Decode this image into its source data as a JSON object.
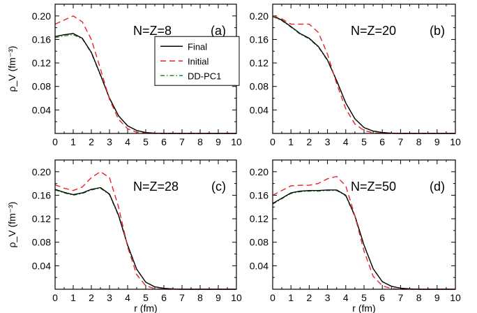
{
  "chart_data": [
    {
      "type": "line",
      "nucleus_label": "N=Z=8",
      "panel_label": "(a)",
      "xlabel": "",
      "ylabel": "ρ_V (fm⁻³)",
      "xlim": [
        0,
        10
      ],
      "ylim": [
        0,
        0.22
      ],
      "x_ticks": [
        "0",
        "1",
        "2",
        "3",
        "4",
        "5",
        "6",
        "7",
        "8",
        "9",
        "10"
      ],
      "y_ticks": [
        "0.04",
        "0.08",
        "0.12",
        "0.16",
        "0.20"
      ],
      "legend": {
        "placement": "right-center"
      },
      "series": [
        {
          "name": "Initial",
          "color": "#e8212a",
          "dash": "dashed",
          "x": [
            0,
            0.5,
            1,
            1.5,
            2,
            2.5,
            3,
            3.5,
            4,
            4.5,
            5,
            5.5,
            6,
            7,
            8,
            9,
            10
          ],
          "y": [
            0.186,
            0.193,
            0.2,
            0.19,
            0.16,
            0.11,
            0.058,
            0.024,
            0.008,
            0.002,
            0.0005,
            0,
            0,
            0,
            0,
            0,
            0
          ]
        },
        {
          "name": "Final",
          "color": "#000000",
          "dash": "solid",
          "x": [
            0,
            0.5,
            1,
            1.5,
            2,
            2.5,
            3,
            3.5,
            4,
            4.5,
            5,
            5.5,
            6,
            7,
            8,
            9,
            10
          ],
          "y": [
            0.165,
            0.168,
            0.17,
            0.162,
            0.138,
            0.1,
            0.06,
            0.03,
            0.013,
            0.005,
            0.0015,
            0.0004,
            0,
            0,
            0,
            0,
            0
          ]
        },
        {
          "name": "DD-PC1",
          "color": "#2a8c2a",
          "dash": "dashdot",
          "x": [
            0,
            0.5,
            1,
            1.5,
            2,
            2.5,
            3,
            3.5,
            4,
            4.5,
            5,
            5.5,
            6,
            7,
            8,
            9,
            10
          ],
          "y": [
            0.163,
            0.166,
            0.168,
            0.161,
            0.137,
            0.099,
            0.06,
            0.03,
            0.013,
            0.005,
            0.0015,
            0.0004,
            0,
            0,
            0,
            0,
            0
          ]
        }
      ]
    },
    {
      "type": "line",
      "nucleus_label": "N=Z=20",
      "panel_label": "(b)",
      "xlabel": "",
      "ylabel": "",
      "xlim": [
        0,
        10
      ],
      "ylim": [
        0,
        0.22
      ],
      "x_ticks": [
        "0",
        "1",
        "2",
        "3",
        "4",
        "5",
        "6",
        "7",
        "8",
        "9",
        "10"
      ],
      "y_ticks": [
        "0.04",
        "0.08",
        "0.12",
        "0.16",
        "0.20"
      ],
      "series": [
        {
          "name": "Initial",
          "color": "#e8212a",
          "dash": "dashed",
          "x": [
            0,
            0.5,
            1,
            1.5,
            2,
            2.5,
            3,
            3.5,
            4,
            4.5,
            5,
            5.5,
            6,
            7,
            8,
            9,
            10
          ],
          "y": [
            0.2,
            0.195,
            0.186,
            0.186,
            0.186,
            0.172,
            0.135,
            0.085,
            0.042,
            0.016,
            0.005,
            0.001,
            0,
            0,
            0,
            0,
            0
          ]
        },
        {
          "name": "Final",
          "color": "#000000",
          "dash": "solid",
          "x": [
            0,
            0.5,
            1,
            1.5,
            2,
            2.5,
            3,
            3.5,
            4,
            4.5,
            5,
            5.5,
            6,
            6.5,
            7,
            8,
            9,
            10
          ],
          "y": [
            0.2,
            0.193,
            0.182,
            0.17,
            0.162,
            0.148,
            0.125,
            0.09,
            0.052,
            0.025,
            0.01,
            0.004,
            0.0015,
            0.0005,
            0,
            0,
            0,
            0
          ]
        },
        {
          "name": "DD-PC1",
          "color": "#2a8c2a",
          "dash": "dashdot",
          "x": [
            0,
            0.5,
            1,
            1.5,
            2,
            2.5,
            3,
            3.5,
            4,
            4.5,
            5,
            5.5,
            6,
            6.5,
            7,
            8,
            9,
            10
          ],
          "y": [
            0.199,
            0.192,
            0.181,
            0.169,
            0.161,
            0.147,
            0.124,
            0.09,
            0.052,
            0.025,
            0.01,
            0.004,
            0.0015,
            0.0005,
            0,
            0,
            0,
            0
          ]
        }
      ]
    },
    {
      "type": "line",
      "nucleus_label": "N=Z=28",
      "panel_label": "(c)",
      "xlabel": "r (fm)",
      "ylabel": "ρ_V (fm⁻³)",
      "xlim": [
        0,
        10
      ],
      "ylim": [
        0,
        0.22
      ],
      "x_ticks": [
        "0",
        "1",
        "2",
        "3",
        "4",
        "5",
        "6",
        "7",
        "8",
        "9",
        "10"
      ],
      "y_ticks": [
        "0.04",
        "0.08",
        "0.12",
        "0.16",
        "0.20"
      ],
      "series": [
        {
          "name": "Initial",
          "color": "#e8212a",
          "dash": "dashed",
          "x": [
            0,
            0.5,
            1,
            1.5,
            2,
            2.5,
            3,
            3.5,
            4,
            4.5,
            5,
            5.5,
            6,
            7,
            8,
            9,
            10
          ],
          "y": [
            0.178,
            0.172,
            0.168,
            0.174,
            0.19,
            0.2,
            0.19,
            0.14,
            0.072,
            0.025,
            0.006,
            0.001,
            0,
            0,
            0,
            0,
            0
          ]
        },
        {
          "name": "Final",
          "color": "#000000",
          "dash": "solid",
          "x": [
            0,
            0.5,
            1,
            1.5,
            2,
            2.5,
            3,
            3.5,
            4,
            4.5,
            5,
            5.5,
            6,
            6.5,
            7,
            8,
            9,
            10
          ],
          "y": [
            0.17,
            0.165,
            0.161,
            0.164,
            0.17,
            0.173,
            0.162,
            0.126,
            0.075,
            0.034,
            0.012,
            0.004,
            0.0015,
            0.0005,
            0,
            0,
            0,
            0
          ]
        },
        {
          "name": "DD-PC1",
          "color": "#2a8c2a",
          "dash": "dashdot",
          "x": [
            0,
            0.5,
            1,
            1.5,
            2,
            2.5,
            3,
            3.5,
            4,
            4.5,
            5,
            5.5,
            6,
            6.5,
            7,
            8,
            9,
            10
          ],
          "y": [
            0.169,
            0.164,
            0.16,
            0.163,
            0.169,
            0.172,
            0.161,
            0.125,
            0.075,
            0.034,
            0.012,
            0.004,
            0.0015,
            0.0005,
            0,
            0,
            0,
            0
          ]
        }
      ]
    },
    {
      "type": "line",
      "nucleus_label": "N=Z=50",
      "panel_label": "(d)",
      "xlabel": "r (fm)",
      "ylabel": "",
      "xlim": [
        0,
        10
      ],
      "ylim": [
        0,
        0.22
      ],
      "x_ticks": [
        "0",
        "1",
        "2",
        "3",
        "4",
        "5",
        "6",
        "7",
        "8",
        "9",
        "10"
      ],
      "y_ticks": [
        "0.04",
        "0.08",
        "0.12",
        "0.16",
        "0.20"
      ],
      "series": [
        {
          "name": "Initial",
          "color": "#e8212a",
          "dash": "dashed",
          "x": [
            0,
            0.5,
            1,
            1.5,
            2,
            2.5,
            3,
            3.5,
            4,
            4.5,
            5,
            5.5,
            6,
            6.5,
            7,
            8,
            9,
            10
          ],
          "y": [
            0.16,
            0.168,
            0.176,
            0.177,
            0.177,
            0.18,
            0.188,
            0.192,
            0.176,
            0.125,
            0.065,
            0.022,
            0.006,
            0.001,
            0,
            0,
            0,
            0
          ]
        },
        {
          "name": "Final",
          "color": "#000000",
          "dash": "solid",
          "x": [
            0,
            0.5,
            1,
            1.5,
            2,
            2.5,
            3,
            3.5,
            4,
            4.5,
            5,
            5.5,
            6,
            6.5,
            7,
            7.5,
            8,
            9,
            10
          ],
          "y": [
            0.146,
            0.155,
            0.164,
            0.167,
            0.168,
            0.168,
            0.169,
            0.169,
            0.16,
            0.125,
            0.075,
            0.035,
            0.013,
            0.005,
            0.0018,
            0.0006,
            0,
            0,
            0
          ]
        },
        {
          "name": "DD-PC1",
          "color": "#2a8c2a",
          "dash": "dashdot",
          "x": [
            0,
            0.5,
            1,
            1.5,
            2,
            2.5,
            3,
            3.5,
            4,
            4.5,
            5,
            5.5,
            6,
            6.5,
            7,
            7.5,
            8,
            9,
            10
          ],
          "y": [
            0.145,
            0.154,
            0.163,
            0.166,
            0.167,
            0.167,
            0.168,
            0.168,
            0.159,
            0.124,
            0.075,
            0.035,
            0.013,
            0.005,
            0.0018,
            0.0006,
            0,
            0,
            0
          ]
        }
      ]
    }
  ]
}
